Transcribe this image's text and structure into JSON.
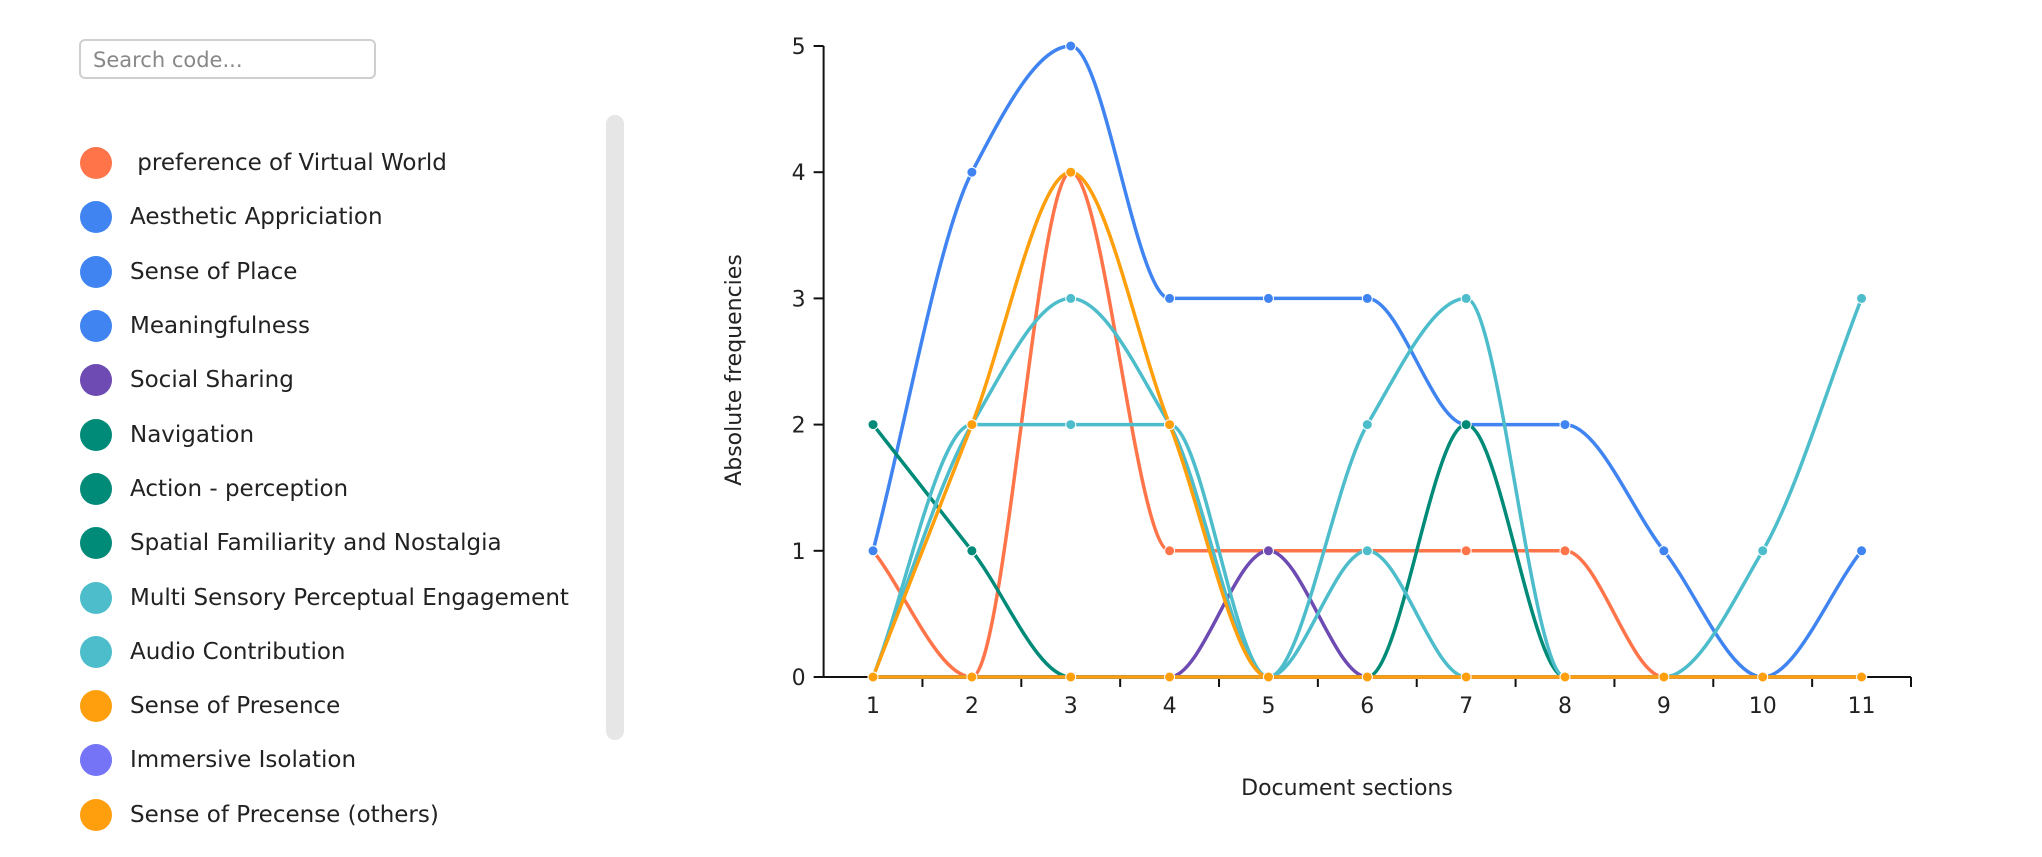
{
  "search_placeholder": "Search code...",
  "chart_data": {
    "type": "line",
    "ylabel": "Absolute frequencies",
    "xlabel": "Document sections",
    "categories": [
      "1",
      "2",
      "3",
      "4",
      "5",
      "6",
      "7",
      "8",
      "9",
      "10",
      "11"
    ],
    "ylim": [
      0,
      5
    ],
    "yticks": [
      0,
      1,
      2,
      3,
      4,
      5
    ],
    "series": [
      {
        "name": " preference of Virtual World",
        "color": "#ff7449",
        "values": [
          1,
          0,
          4,
          1,
          1,
          1,
          1,
          1,
          0,
          0,
          0
        ]
      },
      {
        "name": "Aesthetic Appriciation",
        "color": "#3f84f1",
        "values": [
          1,
          4,
          5,
          3,
          3,
          3,
          2,
          2,
          1,
          0,
          1
        ]
      },
      {
        "name": "Sense of Place",
        "color": "#3f84f1",
        "values": [
          0,
          0,
          0,
          0,
          0,
          0,
          0,
          0,
          0,
          0,
          0
        ]
      },
      {
        "name": "Meaningfulness",
        "color": "#3f84f1",
        "values": [
          0,
          0,
          0,
          0,
          0,
          0,
          0,
          0,
          0,
          0,
          0
        ]
      },
      {
        "name": "Social Sharing",
        "color": "#6d4bb2",
        "values": [
          0,
          0,
          0,
          0,
          1,
          0,
          0,
          0,
          0,
          0,
          0
        ]
      },
      {
        "name": "Navigation",
        "color": "#008a78",
        "values": [
          2,
          1,
          0,
          0,
          0,
          0,
          0,
          0,
          0,
          0,
          0
        ]
      },
      {
        "name": "Action - perception",
        "color": "#008a78",
        "values": [
          0,
          0,
          0,
          0,
          0,
          0,
          2,
          0,
          0,
          0,
          0
        ]
      },
      {
        "name": "Spatial Familiarity and Nostalgia",
        "color": "#008a78",
        "values": [
          0,
          0,
          0,
          0,
          0,
          0,
          0,
          0,
          0,
          0,
          0
        ]
      },
      {
        "name": "Multi Sensory Perceptual Engagement",
        "color": "#4dbdcb",
        "values": [
          0,
          2,
          3,
          2,
          0,
          2,
          3,
          0,
          0,
          1,
          3
        ]
      },
      {
        "name": "Audio Contribution",
        "color": "#4dbdcb",
        "values": [
          0,
          2,
          2,
          2,
          0,
          1,
          0,
          0,
          0,
          0,
          0
        ]
      },
      {
        "name": "Sense of Presence",
        "color": "#ff9f0d",
        "values": [
          0,
          2,
          4,
          2,
          0,
          0,
          0,
          0,
          0,
          0,
          0
        ]
      },
      {
        "name": "Immersive Isolation",
        "color": "#7574f7",
        "values": [
          0,
          0,
          0,
          0,
          0,
          0,
          0,
          0,
          0,
          0,
          0
        ]
      },
      {
        "name": "Sense of Precense (others)",
        "color": "#ff9f0d",
        "values": [
          0,
          0,
          0,
          0,
          0,
          0,
          0,
          0,
          0,
          0,
          0
        ]
      }
    ]
  }
}
